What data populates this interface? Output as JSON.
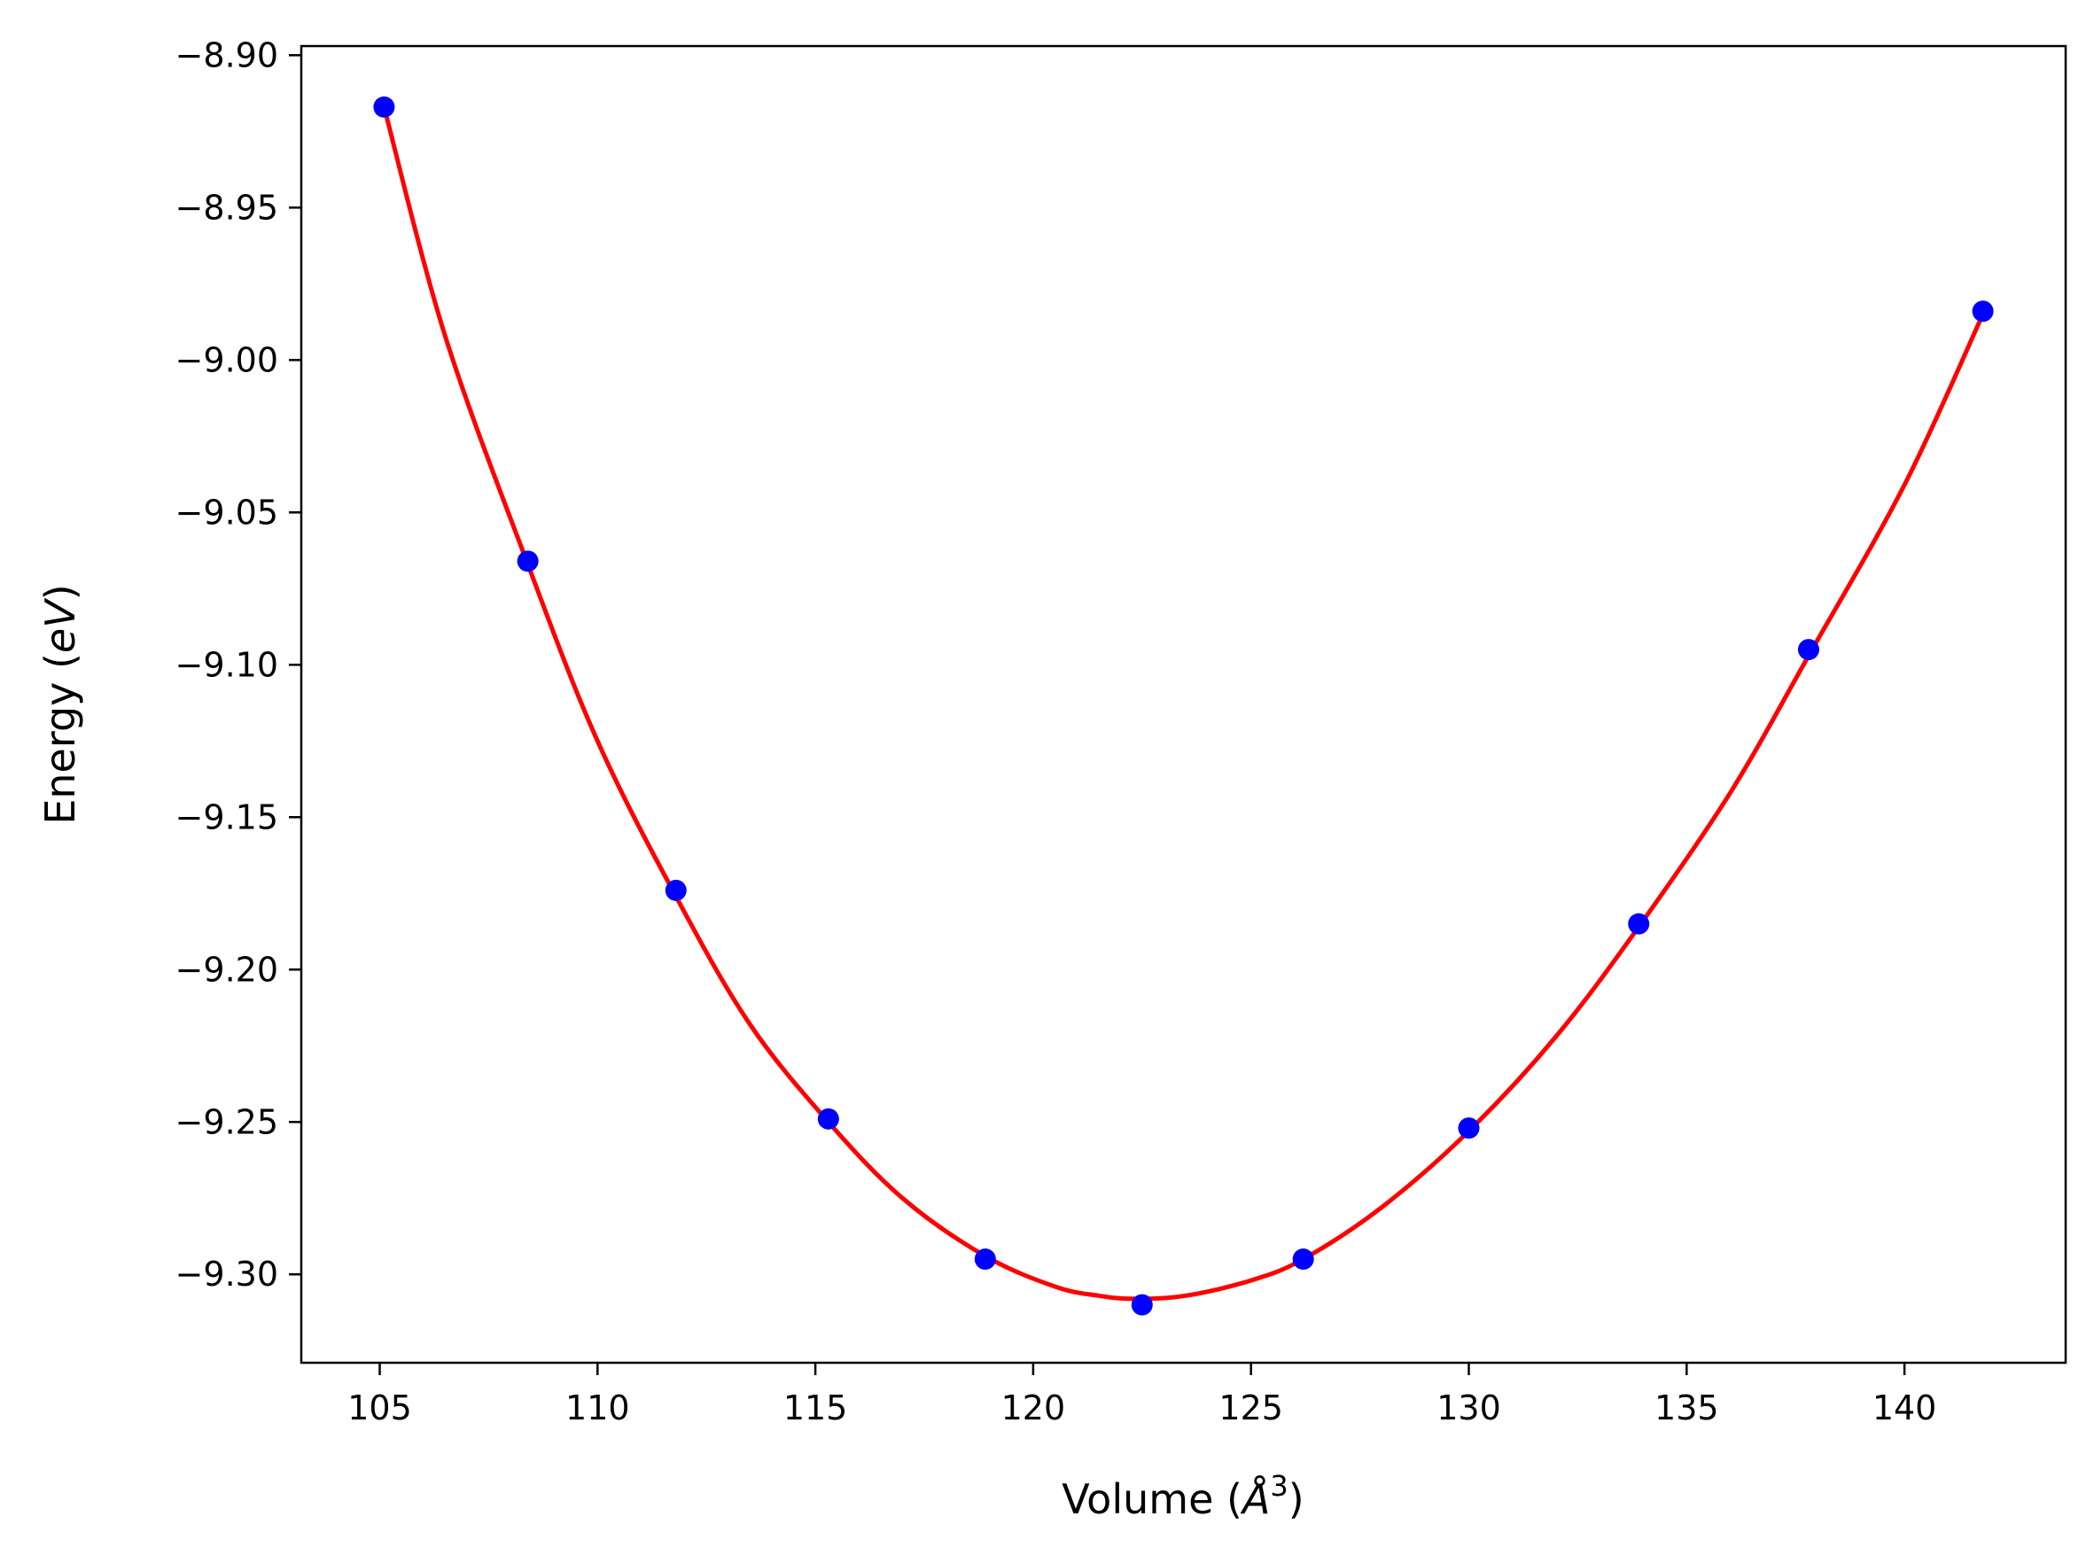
{
  "chart_data": {
    "type": "line",
    "title": "",
    "xlabel_prefix": "Volume (",
    "xlabel_unit": "Å",
    "xlabel_sup": "3",
    "xlabel_suffix": ")",
    "ylabel_prefix": "Energy (",
    "ylabel_unit": "eV",
    "ylabel_suffix": ")",
    "xlim": [
      103.2,
      143.7
    ],
    "ylim": [
      -9.329,
      -8.897
    ],
    "xticks": [
      105,
      110,
      115,
      120,
      125,
      130,
      135,
      140
    ],
    "yticks": [
      -8.9,
      -8.95,
      -9.0,
      -9.05,
      -9.1,
      -9.15,
      -9.2,
      -9.25,
      -9.3
    ],
    "grid": false,
    "legend": "none",
    "series": [
      {
        "kind": "scatter",
        "color": "#0000ff",
        "x": [
          105.1,
          108.4,
          111.8,
          115.3,
          118.9,
          122.5,
          126.2,
          130.0,
          133.9,
          137.8,
          141.8
        ],
        "y": [
          -8.917,
          -9.066,
          -9.174,
          -9.249,
          -9.295,
          -9.31,
          -9.295,
          -9.252,
          -9.185,
          -9.095,
          -8.984
        ]
      },
      {
        "kind": "fit",
        "color": "#ff0000",
        "x": [
          105.1,
          106.5,
          108.4,
          110.0,
          111.8,
          113.5,
          115.3,
          117.0,
          118.9,
          120.5,
          121.5,
          122.3,
          123.5,
          125.0,
          126.2,
          128.0,
          130.0,
          132.0,
          133.9,
          136.0,
          137.8,
          140.0,
          141.8
        ],
        "y": [
          -8.917,
          -8.992,
          -9.067,
          -9.125,
          -9.176,
          -9.218,
          -9.25,
          -9.275,
          -9.294,
          -9.304,
          -9.307,
          -9.308,
          -9.307,
          -9.302,
          -9.295,
          -9.278,
          -9.253,
          -9.222,
          -9.186,
          -9.142,
          -9.097,
          -9.041,
          -8.985
        ]
      }
    ]
  }
}
